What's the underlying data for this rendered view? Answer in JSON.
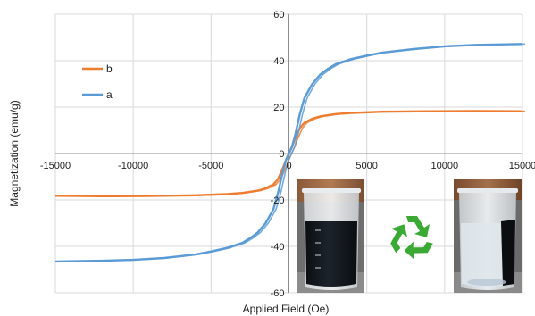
{
  "chart_data": {
    "type": "line",
    "xlabel": "Applied Field (Oe)",
    "ylabel": "Magnetization (emu/g)",
    "xlim": [
      -15000,
      15000
    ],
    "ylim": [
      -60,
      60
    ],
    "x_ticks": [
      -15000,
      -10000,
      -5000,
      0,
      5000,
      10000,
      15000
    ],
    "y_ticks": [
      -60,
      -40,
      -20,
      0,
      20,
      40,
      60
    ],
    "x_tick_labels": [
      "-15000",
      "-10000",
      "-5000",
      "0",
      "5000",
      "10000",
      "15000"
    ],
    "y_tick_labels": [
      "-60",
      "-40",
      "-20",
      "0",
      "20",
      "40",
      "60"
    ],
    "grid": true,
    "legend_placement": "left",
    "series": [
      {
        "name": "b",
        "color": "#ed7d31",
        "x": [
          -15000,
          -12000,
          -9000,
          -6000,
          -4000,
          -3000,
          -2000,
          -1500,
          -1000,
          -700,
          -400,
          -200,
          0,
          200,
          400,
          700,
          1000,
          1500,
          2000,
          3000,
          4000,
          6000,
          9000,
          12000,
          15000
        ],
        "y": [
          -18.2,
          -18.4,
          -18.3,
          -18.0,
          -17.5,
          -17.0,
          -16.0,
          -15.0,
          -13.3,
          -11.0,
          -6.5,
          -3.0,
          0.0,
          3.0,
          6.5,
          11.0,
          13.3,
          15.0,
          16.0,
          17.0,
          17.5,
          18.0,
          18.2,
          18.3,
          18.2
        ]
      },
      {
        "name": "a",
        "color": "#5b9bd5",
        "x": [
          -15000,
          -12000,
          -10000,
          -8000,
          -6000,
          -5000,
          -4000,
          -3000,
          -2500,
          -2000,
          -1500,
          -1000,
          -700,
          -400,
          -200,
          0,
          200,
          400,
          700,
          1000,
          1500,
          2000,
          2500,
          3000,
          4000,
          5000,
          6000,
          8000,
          10000,
          12000,
          15000
        ],
        "y": [
          -46.5,
          -46.2,
          -45.8,
          -45.0,
          -43.5,
          -42.2,
          -40.7,
          -38.5,
          -36.5,
          -34.0,
          -30.0,
          -24.0,
          -17.0,
          -8.0,
          -3.0,
          0.0,
          3.0,
          8.0,
          17.0,
          24.0,
          30.0,
          34.0,
          36.5,
          38.5,
          40.7,
          42.2,
          43.5,
          45.0,
          46.2,
          46.8,
          47.2
        ]
      }
    ],
    "legend": [
      {
        "label": "b",
        "color": "#ed7d31"
      },
      {
        "label": "a",
        "color": "#5b9bd5"
      }
    ],
    "annotations": [
      {
        "kind": "photo",
        "description_icon": "beaker-dark-dispersion-photo"
      },
      {
        "kind": "icon",
        "description_icon": "recycle-icon",
        "color": "#3aaa35"
      },
      {
        "kind": "photo",
        "description_icon": "beaker-clear-with-magnet-photo"
      }
    ]
  }
}
